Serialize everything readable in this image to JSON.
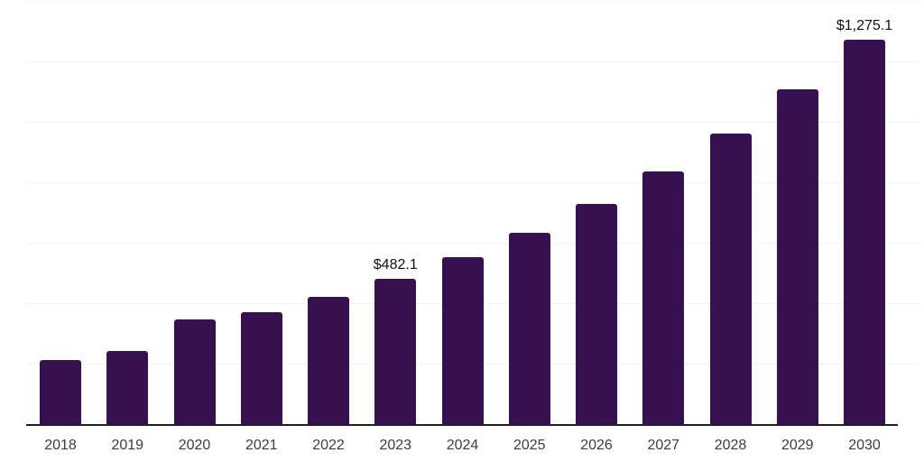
{
  "chart_data": {
    "type": "bar",
    "title": "",
    "xlabel": "",
    "ylabel": "",
    "categories": [
      "2018",
      "2019",
      "2020",
      "2021",
      "2022",
      "2023",
      "2024",
      "2025",
      "2026",
      "2027",
      "2028",
      "2029",
      "2030"
    ],
    "values": [
      215.0,
      245.0,
      349.0,
      373.0,
      424.0,
      482.1,
      554.0,
      636.0,
      731.0,
      840.0,
      965.0,
      1109.0,
      1275.1
    ],
    "point_labels": [
      "",
      "",
      "",
      "",
      "",
      "$482.1",
      "",
      "",
      "",
      "",
      "",
      "",
      "$1,275.1"
    ],
    "ylim": [
      0,
      1400
    ],
    "gridline_step": 200,
    "grid": true,
    "legend": false,
    "y_axis_labels_visible": false,
    "colors": {
      "bar": "#37114F",
      "gridline": "#F2F2F2",
      "axis_line": "#1F1F1F",
      "tick_label": "#3D3D3D",
      "data_label": "#111111",
      "background": "#FFFFFF"
    }
  }
}
